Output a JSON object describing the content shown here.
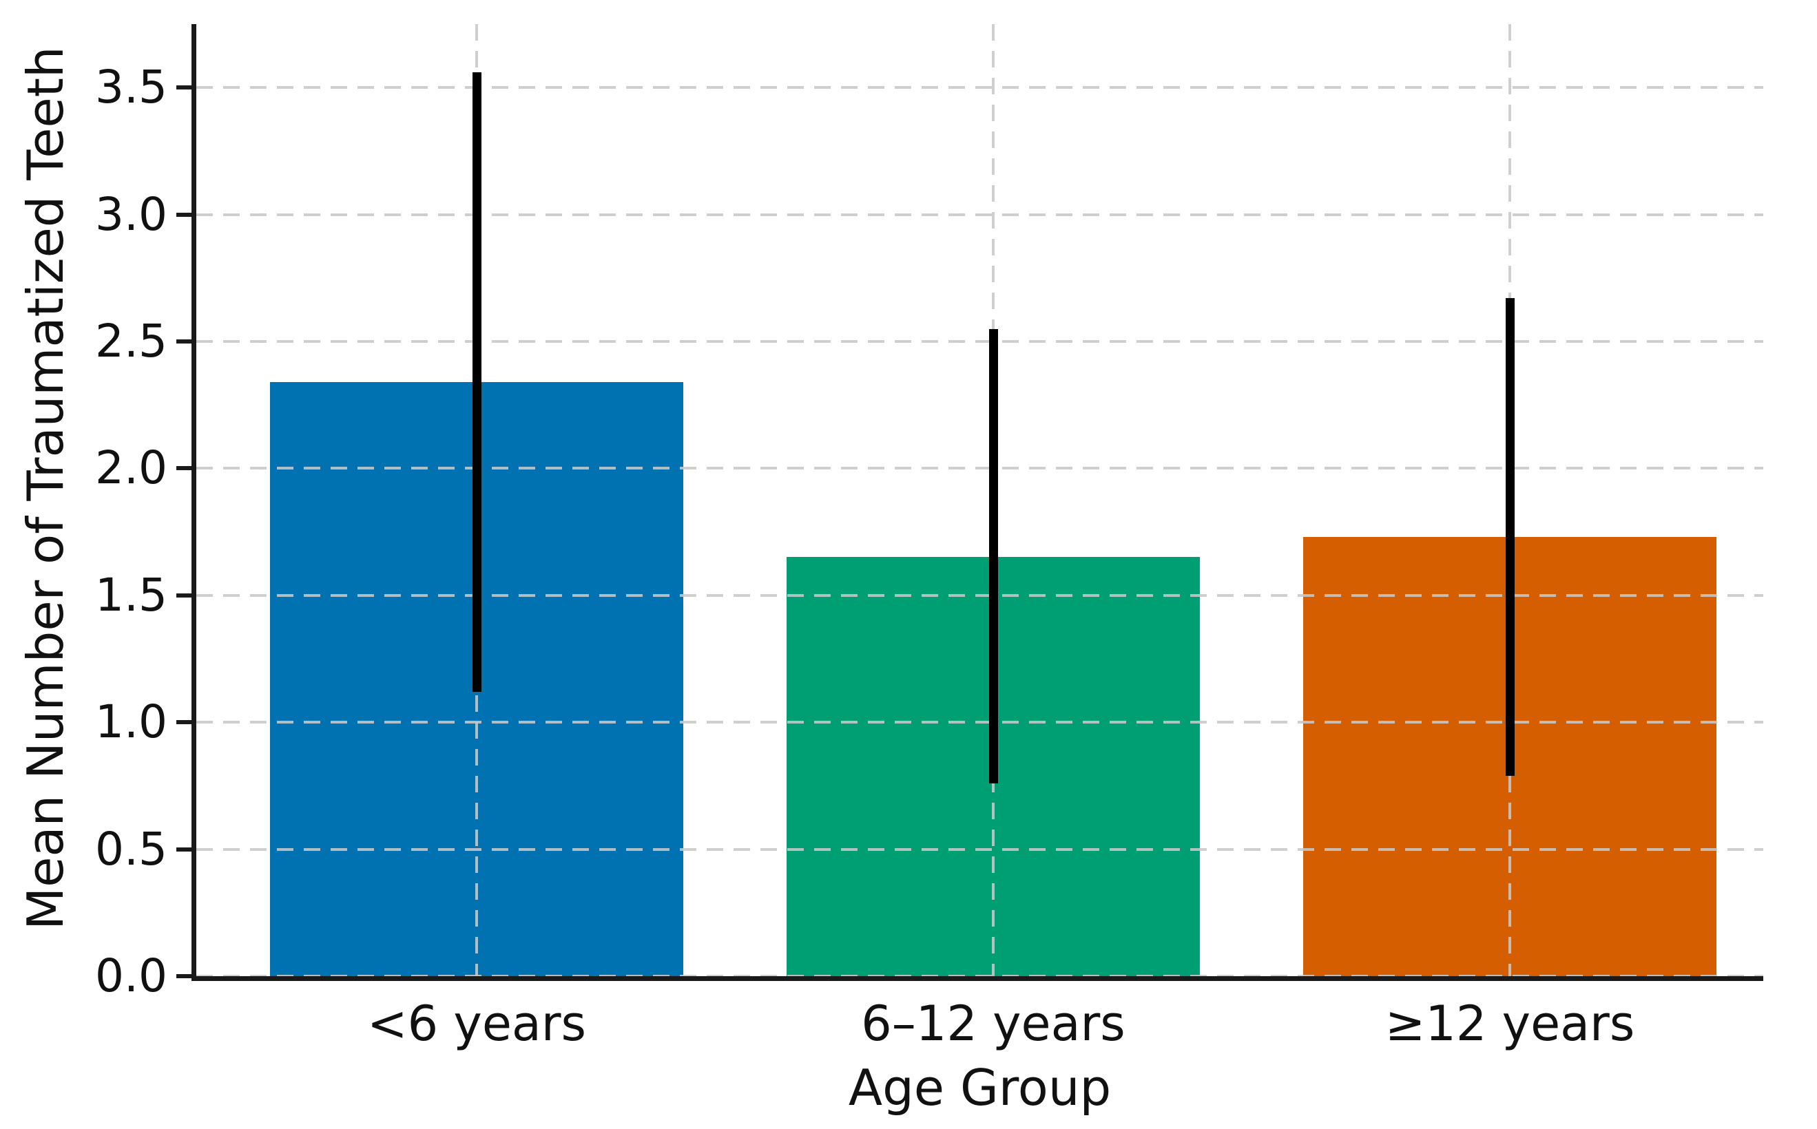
{
  "figure": {
    "background": "#ffffff",
    "text_color": "#111111"
  },
  "chart_data": {
    "type": "bar",
    "title": "",
    "xlabel": "Age Group",
    "ylabel": "Mean Number of Traumatized Teeth",
    "categories": [
      "<6 years",
      "6–12 years",
      "≥12 years"
    ],
    "series": [
      {
        "name": "Mean number of traumatized teeth",
        "values": [
          2.34,
          1.65,
          1.73
        ],
        "error_low": [
          1.12,
          0.76,
          0.79
        ],
        "error_high": [
          3.56,
          2.55,
          2.67
        ]
      }
    ],
    "bar_colors": [
      "#0072B2",
      "#009E73",
      "#D55E00"
    ],
    "error_bar_color": "#000000",
    "grid_color": "#c8c8c8",
    "axis_color": "#1a1a1a",
    "yticks": [
      0.0,
      0.5,
      1.0,
      1.5,
      2.0,
      2.5,
      3.0,
      3.5
    ],
    "ytick_labels": [
      "0.0",
      "0.5",
      "1.0",
      "1.5",
      "2.0",
      "2.5",
      "3.0",
      "3.5"
    ],
    "ylim": [
      0,
      3.75
    ],
    "grid": true,
    "grid_style": "dashed",
    "legend": false
  }
}
